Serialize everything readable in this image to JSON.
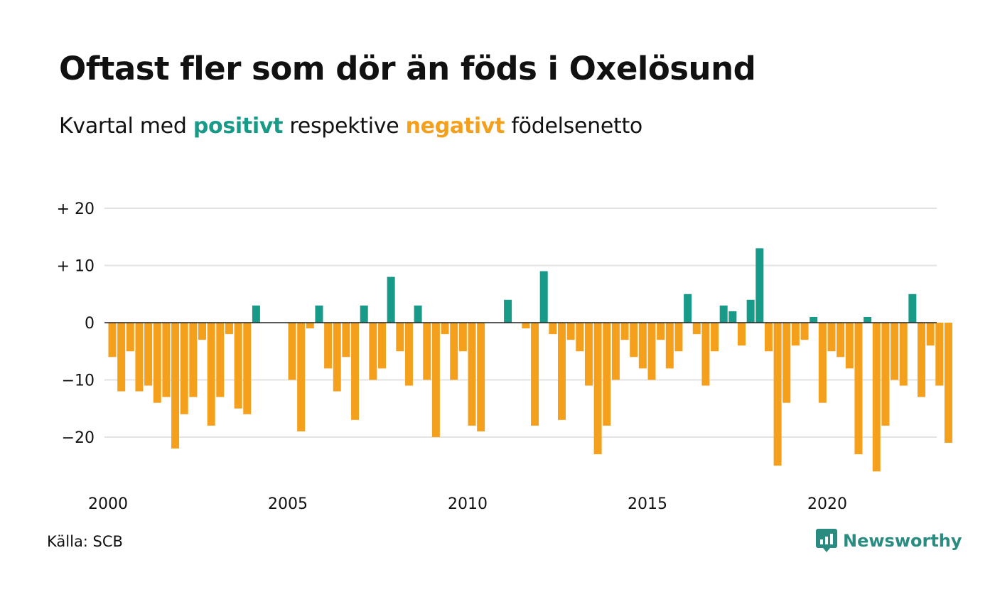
{
  "title": "Oftast fler som dör än föds i Oxelösund",
  "subtitle": {
    "prefix": "Kvartal med ",
    "positive": "positivt",
    "middle": " respektive ",
    "negative": "negativt",
    "suffix": " födelsenetto"
  },
  "source": "Källa: SCB",
  "brand": "Newsworthy",
  "colors": {
    "positive": "#189a88",
    "negative": "#f5a01d",
    "grid": "#e3e3e3",
    "axis": "#222222"
  },
  "chart_data": {
    "type": "bar",
    "start_year": 2000,
    "periods_per_year": 4,
    "y_ticks": [
      {
        "value": 20,
        "label": "+ 20"
      },
      {
        "value": 10,
        "label": "+ 10"
      },
      {
        "value": 0,
        "label": "0"
      },
      {
        "value": -10,
        "label": "−10"
      },
      {
        "value": -20,
        "label": "−20"
      }
    ],
    "x_ticks": [
      {
        "year": 2000,
        "label": "2000"
      },
      {
        "year": 2005,
        "label": "2005"
      },
      {
        "year": 2010,
        "label": "2010"
      },
      {
        "year": 2015,
        "label": "2015"
      },
      {
        "year": 2020,
        "label": "2020"
      }
    ],
    "ylim": [
      -27,
      20
    ],
    "grid": true,
    "values": [
      -6,
      -12,
      -5,
      -12,
      -11,
      -14,
      -13,
      -22,
      -16,
      -13,
      -3,
      -18,
      -13,
      -2,
      -15,
      -16,
      3,
      0,
      0,
      0,
      -10,
      -19,
      -1,
      3,
      -8,
      -12,
      -6,
      -17,
      3,
      -10,
      -8,
      8,
      -5,
      -11,
      3,
      -10,
      -20,
      -2,
      -10,
      -5,
      -18,
      -19,
      0,
      0,
      4,
      0,
      -1,
      -18,
      9,
      -2,
      -17,
      -3,
      -5,
      -11,
      -23,
      -18,
      -10,
      -3,
      -6,
      -8,
      -10,
      -3,
      -8,
      -5,
      5,
      -2,
      -11,
      -5,
      3,
      2,
      -4,
      4,
      13,
      -5,
      -25,
      -14,
      -4,
      -3,
      1,
      -14,
      -5,
      -6,
      -8,
      -23,
      1,
      -26,
      -18,
      -10,
      -11,
      5,
      -13,
      -4,
      -11,
      -21
    ]
  }
}
